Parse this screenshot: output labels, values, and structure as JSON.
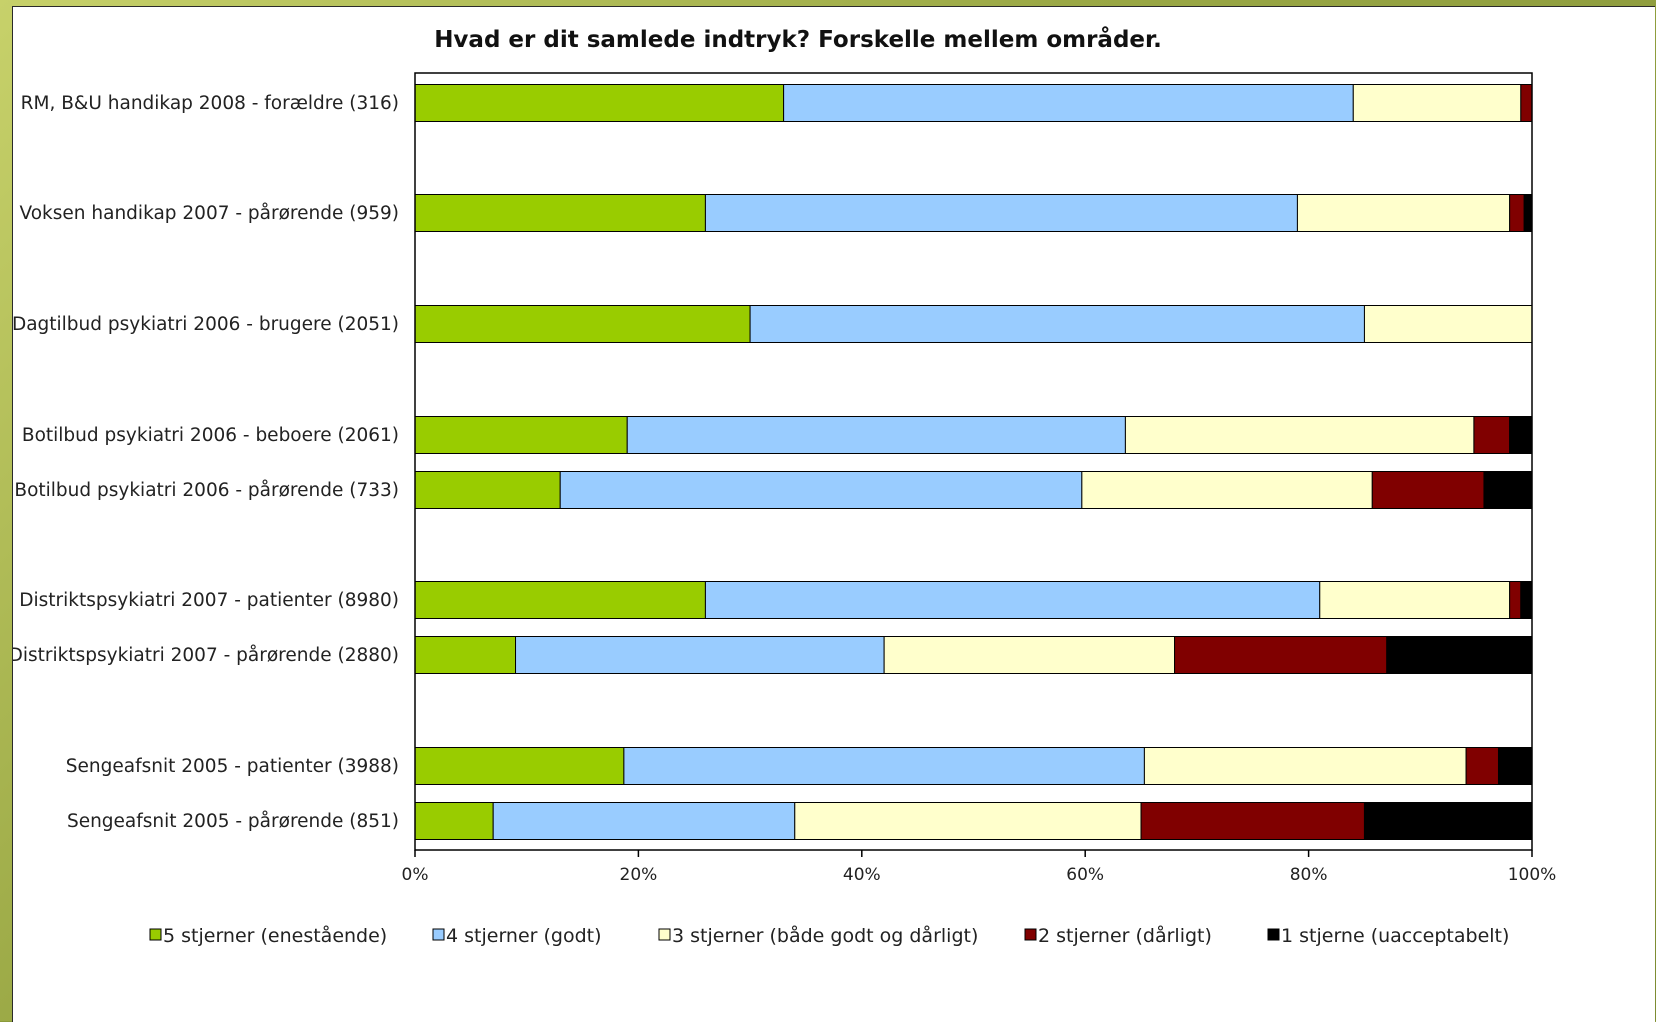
{
  "chart_data": {
    "type": "bar",
    "orientation": "horizontal",
    "stacked": true,
    "normalized": true,
    "title": "Hvad er dit samlede indtryk? Forskelle mellem områder.",
    "xlabel": "",
    "ylabel": "",
    "xlim": [
      0,
      100
    ],
    "x_ticks": [
      "0%",
      "20%",
      "40%",
      "60%",
      "80%",
      "100%"
    ],
    "grid": false,
    "legend_position": "bottom",
    "categories": [
      "RM, B&U handikap 2008 - forældre (316)",
      "Voksen handikap 2007 - pårørende (959)",
      "Dagtilbud psykiatri 2006 - brugere (2051)",
      "Botilbud psykiatri 2006 - beboere (2061)",
      "Botilbud psykiatri 2006 - pårørende (733)",
      "Distriktspsykiatri 2007 - patienter (8980)",
      "Distriktspsykiatri 2007 - pårørende (2880)",
      "Sengeafsnit 2005 - patienter (3988)",
      "Sengeafsnit 2005 - pårørende (851)"
    ],
    "series": [
      {
        "name": "5 stjerner (enestående)",
        "color": "#99cc00",
        "values": [
          33,
          26,
          30,
          19,
          13,
          26,
          9,
          18.7,
          7
        ]
      },
      {
        "name": "4 stjerner (godt)",
        "color": "#99ccff",
        "values": [
          51,
          53,
          55,
          44.6,
          46.7,
          55,
          33,
          46.6,
          27
        ]
      },
      {
        "name": "3 stjerner (både godt og dårligt)",
        "color": "#ffffcc",
        "values": [
          15,
          19,
          15,
          31.2,
          26,
          17,
          26,
          28.8,
          31
        ]
      },
      {
        "name": "2 stjerner (dårligt)",
        "color": "#800000",
        "values": [
          1,
          1.3,
          0,
          3.2,
          10,
          1,
          19,
          2.9,
          20
        ]
      },
      {
        "name": "1 stjerne (uacceptabelt)",
        "color": "#000000",
        "values": [
          0,
          0.7,
          0,
          2,
          4.3,
          1,
          13,
          3,
          15
        ]
      }
    ],
    "legend_labels": [
      "5 stjerner (enestående)",
      "4 stjerner (godt)",
      "3 stjerner (både godt og dårligt)",
      "2 stjerner (dårligt)",
      "1 stjerne (uacceptabelt)"
    ]
  }
}
